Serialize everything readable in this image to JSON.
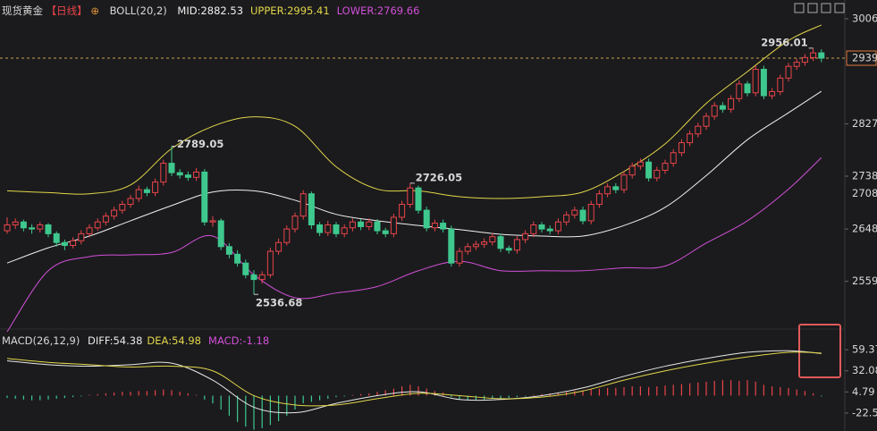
{
  "header": {
    "instrument": "现货黄金",
    "period": "【日线】",
    "icon": "⊕"
  },
  "chart_data": {
    "type": "candlestick",
    "ylim": [
      2470,
      3038
    ],
    "yticks": [
      3006,
      2827,
      2738,
      2648,
      2559
    ],
    "current_price": 2939,
    "marker_price": 2708,
    "up_color": "#e8444a",
    "down_color": "#3ec88e",
    "ohlc": [
      [
        2645,
        2668,
        2640,
        2655
      ],
      [
        2655,
        2666,
        2648,
        2660
      ],
      [
        2660,
        2664,
        2644,
        2650
      ],
      [
        2650,
        2656,
        2640,
        2648
      ],
      [
        2648,
        2660,
        2642,
        2655
      ],
      [
        2655,
        2658,
        2634,
        2640
      ],
      [
        2640,
        2644,
        2618,
        2625
      ],
      [
        2625,
        2630,
        2612,
        2620
      ],
      [
        2620,
        2634,
        2615,
        2628
      ],
      [
        2628,
        2646,
        2622,
        2640
      ],
      [
        2640,
        2656,
        2634,
        2650
      ],
      [
        2650,
        2666,
        2645,
        2660
      ],
      [
        2660,
        2676,
        2654,
        2670
      ],
      [
        2670,
        2686,
        2664,
        2680
      ],
      [
        2680,
        2696,
        2674,
        2690
      ],
      [
        2690,
        2706,
        2684,
        2700
      ],
      [
        2700,
        2722,
        2694,
        2715
      ],
      [
        2715,
        2720,
        2704,
        2710
      ],
      [
        2710,
        2734,
        2704,
        2728
      ],
      [
        2728,
        2766,
        2722,
        2760
      ],
      [
        2760,
        2789.05,
        2738,
        2744
      ],
      [
        2744,
        2750,
        2734,
        2740
      ],
      [
        2740,
        2746,
        2730,
        2736
      ],
      [
        2736,
        2752,
        2730,
        2745
      ],
      [
        2745,
        2750,
        2654,
        2660
      ],
      [
        2660,
        2670,
        2652,
        2662
      ],
      [
        2662,
        2666,
        2612,
        2618
      ],
      [
        2618,
        2624,
        2598,
        2605
      ],
      [
        2605,
        2612,
        2584,
        2590
      ],
      [
        2590,
        2596,
        2564,
        2570
      ],
      [
        2570,
        2578,
        2536.68,
        2562
      ],
      [
        2562,
        2576,
        2555,
        2570
      ],
      [
        2570,
        2616,
        2565,
        2610
      ],
      [
        2610,
        2632,
        2604,
        2625
      ],
      [
        2625,
        2654,
        2620,
        2648
      ],
      [
        2648,
        2676,
        2642,
        2670
      ],
      [
        2670,
        2714,
        2664,
        2708
      ],
      [
        2708,
        2712,
        2648,
        2655
      ],
      [
        2655,
        2660,
        2636,
        2642
      ],
      [
        2642,
        2662,
        2636,
        2655
      ],
      [
        2655,
        2660,
        2634,
        2640
      ],
      [
        2640,
        2656,
        2634,
        2650
      ],
      [
        2650,
        2666,
        2644,
        2660
      ],
      [
        2660,
        2665,
        2646,
        2652
      ],
      [
        2652,
        2666,
        2646,
        2660
      ],
      [
        2660,
        2665,
        2639,
        2645
      ],
      [
        2645,
        2650,
        2634,
        2640
      ],
      [
        2640,
        2674,
        2634,
        2668
      ],
      [
        2668,
        2696,
        2662,
        2690
      ],
      [
        2690,
        2726.05,
        2684,
        2718
      ],
      [
        2718,
        2722,
        2674,
        2680
      ],
      [
        2680,
        2686,
        2644,
        2650
      ],
      [
        2650,
        2664,
        2644,
        2658
      ],
      [
        2658,
        2664,
        2642,
        2648
      ],
      [
        2648,
        2654,
        2584,
        2590
      ],
      [
        2590,
        2616,
        2584,
        2610
      ],
      [
        2610,
        2624,
        2604,
        2618
      ],
      [
        2618,
        2628,
        2612,
        2622
      ],
      [
        2622,
        2632,
        2616,
        2626
      ],
      [
        2626,
        2641,
        2620,
        2635
      ],
      [
        2635,
        2640,
        2609,
        2615
      ],
      [
        2615,
        2620,
        2606,
        2612
      ],
      [
        2612,
        2636,
        2606,
        2630
      ],
      [
        2630,
        2646,
        2624,
        2640
      ],
      [
        2640,
        2661,
        2634,
        2655
      ],
      [
        2655,
        2660,
        2642,
        2648
      ],
      [
        2648,
        2654,
        2639,
        2645
      ],
      [
        2645,
        2666,
        2639,
        2660
      ],
      [
        2660,
        2678,
        2654,
        2672
      ],
      [
        2672,
        2686,
        2666,
        2680
      ],
      [
        2680,
        2686,
        2656,
        2662
      ],
      [
        2662,
        2696,
        2656,
        2690
      ],
      [
        2690,
        2714,
        2684,
        2708
      ],
      [
        2708,
        2726,
        2702,
        2720
      ],
      [
        2720,
        2726,
        2709,
        2715
      ],
      [
        2715,
        2746,
        2709,
        2740
      ],
      [
        2740,
        2761,
        2734,
        2755
      ],
      [
        2755,
        2768,
        2749,
        2762
      ],
      [
        2762,
        2768,
        2729,
        2735
      ],
      [
        2735,
        2754,
        2729,
        2748
      ],
      [
        2748,
        2766,
        2742,
        2760
      ],
      [
        2760,
        2784,
        2754,
        2778
      ],
      [
        2778,
        2801,
        2772,
        2795
      ],
      [
        2795,
        2816,
        2789,
        2810
      ],
      [
        2810,
        2829,
        2804,
        2823
      ],
      [
        2823,
        2846,
        2817,
        2840
      ],
      [
        2840,
        2864,
        2834,
        2858
      ],
      [
        2858,
        2864,
        2846,
        2852
      ],
      [
        2852,
        2876,
        2846,
        2870
      ],
      [
        2870,
        2901,
        2864,
        2895
      ],
      [
        2895,
        2900,
        2874,
        2880
      ],
      [
        2880,
        2926,
        2874,
        2920
      ],
      [
        2920,
        2926,
        2869,
        2875
      ],
      [
        2875,
        2888,
        2869,
        2882
      ],
      [
        2882,
        2911,
        2876,
        2905
      ],
      [
        2905,
        2931,
        2899,
        2925
      ],
      [
        2925,
        2938,
        2919,
        2932
      ],
      [
        2932,
        2946,
        2926,
        2940
      ],
      [
        2940,
        2956.01,
        2934,
        2948
      ],
      [
        2948,
        2954,
        2932,
        2939
      ]
    ],
    "boll": {
      "name": "BOLL(20,2)",
      "x": [
        0,
        5,
        10,
        15,
        20,
        25,
        30,
        35,
        40,
        45,
        50,
        55,
        60,
        65,
        70,
        75,
        80,
        85,
        90,
        95,
        99
      ],
      "series": [
        {
          "label": "MID:",
          "value": 2882.53,
          "color": "#f0f0f0",
          "values": [
            2590,
            2616,
            2636,
            2662,
            2688,
            2711,
            2713,
            2697,
            2673,
            2662,
            2654,
            2647,
            2639,
            2636,
            2636,
            2654,
            2685,
            2739,
            2800,
            2846,
            2882.53
          ]
        },
        {
          "label": "UPPER:",
          "value": 2995.41,
          "color": "#e3d64a",
          "values": [
            2713,
            2710,
            2708,
            2723,
            2785,
            2823,
            2839,
            2823,
            2754,
            2716,
            2713,
            2703,
            2700,
            2703,
            2711,
            2746,
            2793,
            2862,
            2916,
            2969,
            2995.41
          ]
        },
        {
          "label": "LOWER:",
          "value": 2769.66,
          "color": "#d24fd8",
          "values": [
            2473,
            2577,
            2601,
            2604,
            2608,
            2636,
            2570,
            2531,
            2539,
            2550,
            2577,
            2593,
            2577,
            2577,
            2577,
            2582,
            2585,
            2624,
            2662,
            2716,
            2769.66
          ]
        }
      ]
    },
    "macd": {
      "name": "MACD(26,12,9)",
      "ylim": [
        -45.7,
        81.4
      ],
      "yticks": [
        59.37,
        32.08,
        4.79,
        -22.5
      ],
      "x": [
        0,
        5,
        10,
        15,
        20,
        25,
        30,
        35,
        40,
        45,
        50,
        55,
        60,
        65,
        70,
        75,
        80,
        85,
        90,
        95,
        99
      ],
      "series": [
        {
          "label": "DIFF:",
          "value": 54.38,
          "color": "#e8e8e8",
          "values": [
            45,
            40,
            38,
            40,
            42,
            20,
            -15,
            -22,
            -10,
            0,
            5,
            -5,
            -5,
            0,
            10,
            25,
            38,
            48,
            56,
            58,
            54.38
          ]
        },
        {
          "label": "DEA:",
          "value": 54.98,
          "color": "#e3d64a",
          "values": [
            48,
            43,
            40,
            37,
            38,
            32,
            0,
            -12,
            -12,
            -4,
            3,
            0,
            -4,
            -2,
            6,
            20,
            32,
            42,
            50,
            56,
            54.98
          ]
        }
      ],
      "histogram": {
        "label": "MACD:",
        "value": -1.18,
        "color": "#d24fd8",
        "values": [
          -3,
          -4,
          -5,
          -6,
          -6,
          -5,
          -4,
          -3,
          -2,
          -1,
          1,
          2,
          3,
          4,
          5,
          5,
          6,
          6,
          7,
          8,
          7,
          5,
          3,
          1,
          -5,
          -10,
          -18,
          -26,
          -34,
          -40,
          -44,
          -42,
          -38,
          -33,
          -26,
          -18,
          -10,
          -8,
          -6,
          -4,
          -2,
          -1,
          1,
          2,
          3,
          5,
          7,
          9,
          12,
          14,
          12,
          9,
          6,
          4,
          -2,
          -5,
          -6,
          -6,
          -5,
          -4,
          -4,
          -3,
          -2,
          -1,
          1,
          2,
          3,
          4,
          5,
          6,
          7,
          8,
          9,
          10,
          10,
          11,
          12,
          12,
          11,
          12,
          13,
          14,
          15,
          16,
          17,
          18,
          19,
          20,
          20,
          19,
          20,
          18,
          14,
          12,
          11,
          10,
          8,
          6,
          3,
          -1.18
        ]
      }
    }
  }
}
